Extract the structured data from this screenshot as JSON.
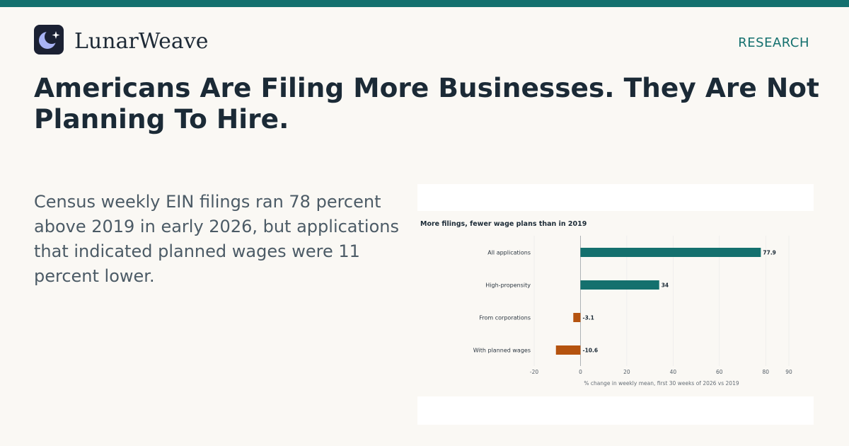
{
  "header": {
    "brand": "LunarWeave",
    "section": "RESEARCH",
    "logo_icon": "moon-star-icon"
  },
  "article": {
    "headline": "Americans Are Filing More Businesses. They Are Not Planning To Hire.",
    "dek": "Census weekly EIN filings ran 78 percent above 2019 in early 2026, but applications that indicated planned wages were 11 percent lower."
  },
  "colors": {
    "accent": "#14706e",
    "positive": "#14706e",
    "negative": "#b5530f",
    "logo_bg": "#1b2133",
    "moon": "#a9b4f5"
  },
  "chart_data": {
    "type": "bar",
    "orientation": "horizontal",
    "title": "More filings, fewer wage plans than in 2019",
    "xlabel": "% change in weekly mean, first 30 weeks of 2026 vs 2019",
    "ylabel": "",
    "categories": [
      "All applications",
      "High-propensity",
      "From corporations",
      "With planned wages"
    ],
    "values": [
      77.9,
      34,
      -3.1,
      -10.6
    ],
    "value_labels": [
      "77.9",
      "34",
      "-3.1",
      "-10.6"
    ],
    "xlim": [
      -20,
      90
    ],
    "xticks": [
      -20,
      0,
      20,
      40,
      60,
      80,
      90
    ],
    "grid": true,
    "legend": "none"
  }
}
